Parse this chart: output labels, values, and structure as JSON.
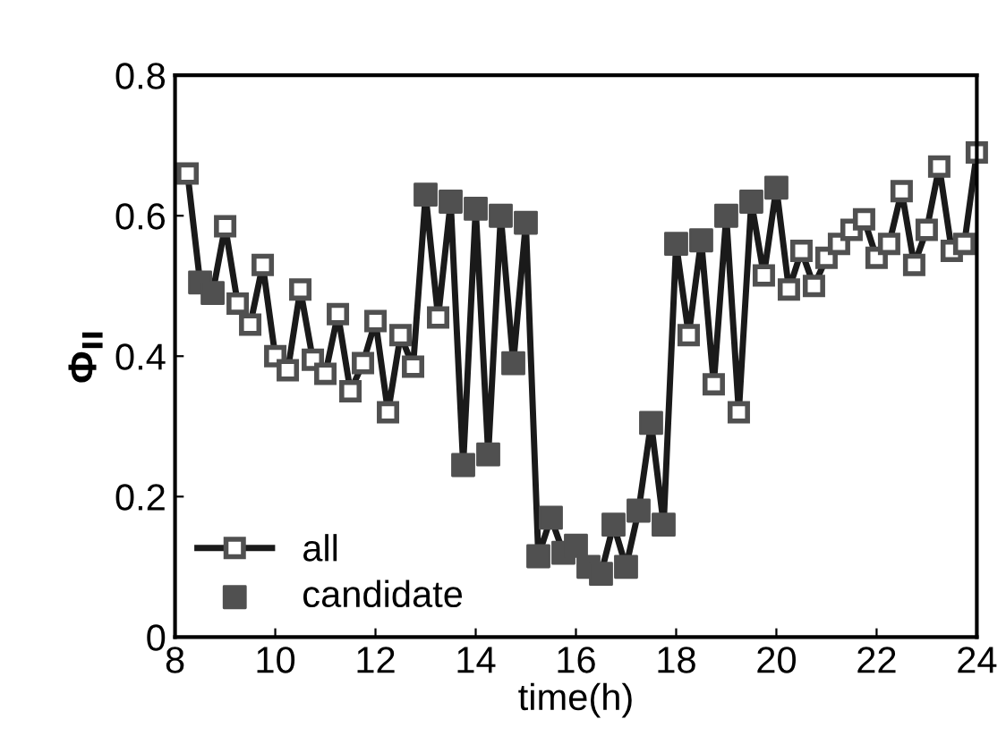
{
  "chart_data": {
    "type": "line",
    "xlabel": "time(h)",
    "ylabel": "Φ$_{II}$",
    "xlim": [
      8,
      24
    ],
    "xticks": [
      8,
      10,
      12,
      14,
      16,
      18,
      20,
      22,
      24
    ],
    "ylim": [
      0,
      0.8
    ],
    "yticks": [
      0,
      0.2,
      0.4,
      0.6,
      0.8
    ],
    "grid": false,
    "legend": "bottom left",
    "series": [
      {
        "name": "all",
        "color": "#1a1a1a",
        "marker": "square",
        "line_style": "solid",
        "x": [
          8.25,
          8.5,
          8.75,
          9.0,
          9.25,
          9.5,
          9.75,
          10.0,
          10.25,
          10.5,
          10.75,
          11.0,
          11.25,
          11.5,
          11.75,
          12.0,
          12.25,
          12.5,
          12.75,
          13.0,
          13.25,
          13.5,
          13.75,
          14.0,
          14.25,
          14.5,
          14.75,
          15.0,
          15.25,
          15.5,
          15.75,
          16.0,
          16.25,
          16.5,
          16.75,
          17.0,
          17.25,
          17.5,
          17.75,
          18.0,
          18.25,
          18.5,
          18.75,
          19.0,
          19.25,
          19.5,
          19.75,
          20.0,
          20.25,
          20.5,
          20.75,
          21.0,
          21.25,
          21.5,
          21.75,
          22.0,
          22.25,
          22.5,
          22.75,
          23.0,
          23.25,
          23.5,
          23.75,
          24.0
        ],
        "values": [
          0.66,
          0.505,
          0.49,
          0.585,
          0.475,
          0.445,
          0.53,
          0.4,
          0.38,
          0.495,
          0.395,
          0.375,
          0.46,
          0.35,
          0.39,
          0.45,
          0.32,
          0.43,
          0.385,
          0.63,
          0.455,
          0.62,
          0.245,
          0.61,
          0.26,
          0.6,
          0.39,
          0.59,
          0.115,
          0.17,
          0.12,
          0.13,
          0.1,
          0.09,
          0.16,
          0.1,
          0.18,
          0.305,
          0.16,
          0.56,
          0.43,
          0.565,
          0.36,
          0.6,
          0.32,
          0.62,
          0.515,
          0.64,
          0.495,
          0.55,
          0.5,
          0.54,
          0.56,
          0.58,
          0.595,
          0.54,
          0.56,
          0.635,
          0.53,
          0.58,
          0.67,
          0.55,
          0.56,
          0.69
        ]
      },
      {
        "name": "candidate",
        "type": "scatter",
        "color": "#505050",
        "marker": "square",
        "x": [
          8.5,
          8.75,
          13.0,
          13.5,
          13.75,
          14.0,
          14.25,
          14.5,
          14.75,
          15.0,
          15.25,
          15.5,
          15.75,
          16.0,
          16.25,
          16.5,
          16.75,
          17.0,
          17.25,
          17.5,
          17.75,
          18.0,
          18.5,
          19.0,
          19.5,
          20.0
        ],
        "values": [
          0.505,
          0.49,
          0.63,
          0.62,
          0.245,
          0.61,
          0.26,
          0.6,
          0.39,
          0.59,
          0.115,
          0.17,
          0.12,
          0.13,
          0.1,
          0.09,
          0.16,
          0.1,
          0.18,
          0.305,
          0.16,
          0.56,
          0.565,
          0.6,
          0.62,
          0.64
        ]
      }
    ]
  }
}
